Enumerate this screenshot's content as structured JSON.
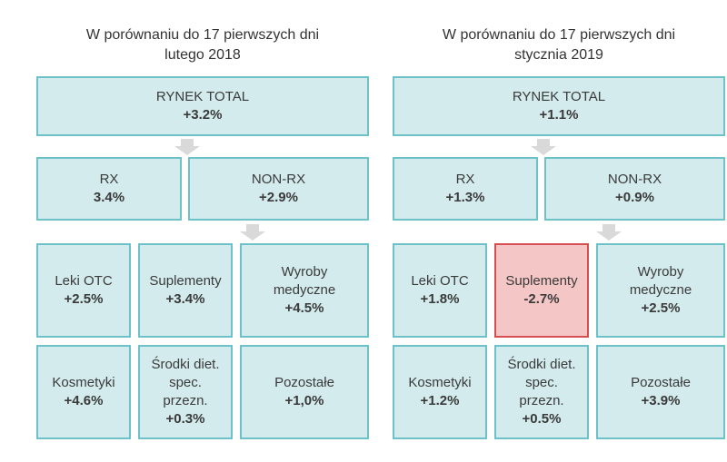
{
  "colors": {
    "box_fill": "#d3ebed",
    "box_border": "#6cc2c6",
    "negative_fill": "#f5c6c6",
    "negative_border": "#d6504f",
    "arrow": "#d9d9d9"
  },
  "icons": {
    "down_arrow": "down-arrow-icon"
  },
  "left": {
    "title_line1": "W porównaniu do 17 pierwszych dni",
    "title_line2": "lutego 2018",
    "top": {
      "label": "RYNEK TOTAL",
      "value": "+3.2%"
    },
    "rx": {
      "label": "RX",
      "value": "3.4%"
    },
    "nonrx": {
      "label": "NON-RX",
      "value": "+2.9%"
    },
    "grid": [
      {
        "lines": [
          "Leki OTC"
        ],
        "value": "+2.5%"
      },
      {
        "lines": [
          "Suplementy"
        ],
        "value": "+3.4%"
      },
      {
        "lines": [
          "Wyroby",
          "medyczne"
        ],
        "value": "+4.5%"
      },
      {
        "lines": [
          "Kosmetyki"
        ],
        "value": "+4.6%"
      },
      {
        "lines": [
          "Środki diet.",
          "spec.",
          "przezn."
        ],
        "value": "+0.3%"
      },
      {
        "lines": [
          "Pozostałe"
        ],
        "value": "+1,0%"
      }
    ]
  },
  "right": {
    "title_line1": "W porównaniu do 17 pierwszych dni",
    "title_line2": "stycznia 2019",
    "top": {
      "label": "RYNEK TOTAL",
      "value": "+1.1%"
    },
    "rx": {
      "label": "RX",
      "value": "+1.3%"
    },
    "nonrx": {
      "label": "NON-RX",
      "value": "+0.9%"
    },
    "grid": [
      {
        "lines": [
          "Leki OTC"
        ],
        "value": "+1.8%"
      },
      {
        "lines": [
          "Suplementy"
        ],
        "value": "-2.7%"
      },
      {
        "lines": [
          "Wyroby",
          "medyczne"
        ],
        "value": "+2.5%"
      },
      {
        "lines": [
          "Kosmetyki"
        ],
        "value": "+1.2%"
      },
      {
        "lines": [
          "Środki diet.",
          "spec.",
          "przezn."
        ],
        "value": "+0.5%"
      },
      {
        "lines": [
          "Pozostałe"
        ],
        "value": "+3.9%"
      }
    ]
  }
}
